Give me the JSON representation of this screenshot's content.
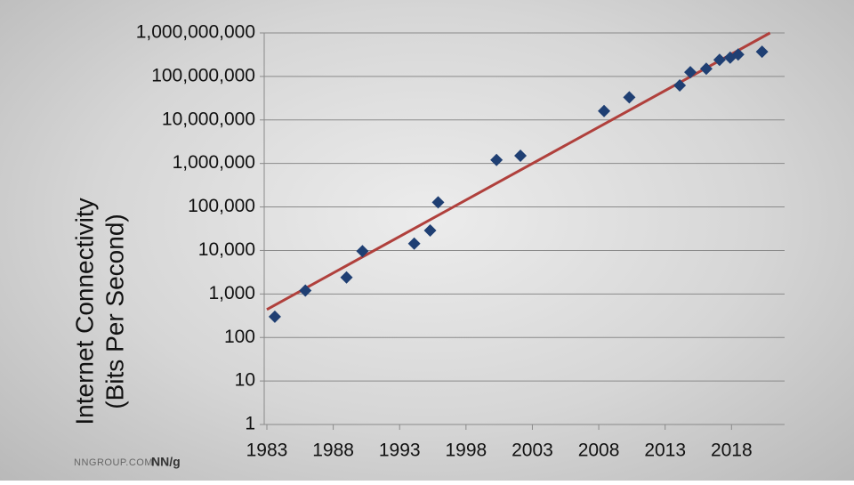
{
  "chart_data": {
    "type": "scatter",
    "ylabel": [
      "Internet Connectivity",
      "(Bits Per Second)"
    ],
    "ylog": true,
    "grid": true,
    "xlim": [
      1982.8,
      2022
    ],
    "xticks": [
      1983,
      1988,
      1993,
      1998,
      2003,
      2008,
      2013,
      2018
    ],
    "ylim": [
      1,
      1000000000
    ],
    "yticks": [
      1,
      10,
      100,
      {
        "value": 1000,
        "label": "1,000"
      },
      {
        "value": 10000,
        "label": "10,000"
      },
      {
        "value": 100000,
        "label": "100,000"
      },
      {
        "value": 1000000,
        "label": "1,000,000"
      },
      {
        "value": 10000000,
        "label": "10,000,000"
      },
      {
        "value": 100000000,
        "label": "100,000,000"
      },
      {
        "value": 1000000000,
        "label": "1,000,000,000"
      }
    ],
    "series": [
      {
        "color": "#1f3f73",
        "marker": "diamond",
        "x": [
          1983.6,
          1985.9,
          1989.0,
          1990.2,
          1994.1,
          1995.3,
          1995.9,
          2000.3,
          2002.1,
          2008.4,
          2010.3,
          2014.1,
          2014.9,
          2016.1,
          2017.1,
          2017.9,
          2018.5,
          2020.3
        ],
        "values": [
          300,
          1200,
          2400,
          9600,
          14400,
          28800,
          128000,
          1200000,
          1500000,
          16000000,
          33000000,
          62000000,
          125000000,
          150000000,
          240000000,
          270000000,
          320000000,
          370000000
        ]
      }
    ],
    "trendline": {
      "color": "#b0403c",
      "x": [
        1983,
        2020.9
      ],
      "values": [
        440,
        1000000000
      ]
    },
    "source": "NNGROUP.COM",
    "logo": "NN/g"
  }
}
